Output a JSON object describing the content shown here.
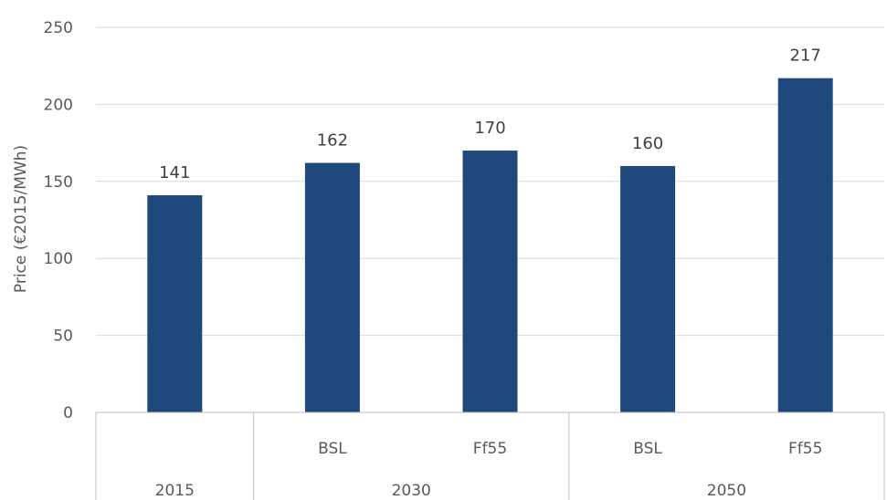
{
  "chart_data": {
    "type": "bar",
    "categories": [
      {
        "sub": "",
        "group": "2015"
      },
      {
        "sub": "BSL",
        "group": "2030"
      },
      {
        "sub": "Ff55",
        "group": "2030"
      },
      {
        "sub": "BSL",
        "group": "2050"
      },
      {
        "sub": "Ff55",
        "group": "2050"
      }
    ],
    "groups": [
      "2015",
      "2030",
      "2050"
    ],
    "values": [
      141,
      162,
      170,
      160,
      217
    ],
    "data_labels": [
      "141",
      "162",
      "170",
      "160",
      "217"
    ],
    "ylabel": "Price (€2015/MWh)",
    "ylim": [
      0,
      250
    ],
    "yticks": [
      "0",
      "50",
      "100",
      "150",
      "200",
      "250"
    ],
    "grid": true,
    "bar_color": "#1f497d"
  }
}
